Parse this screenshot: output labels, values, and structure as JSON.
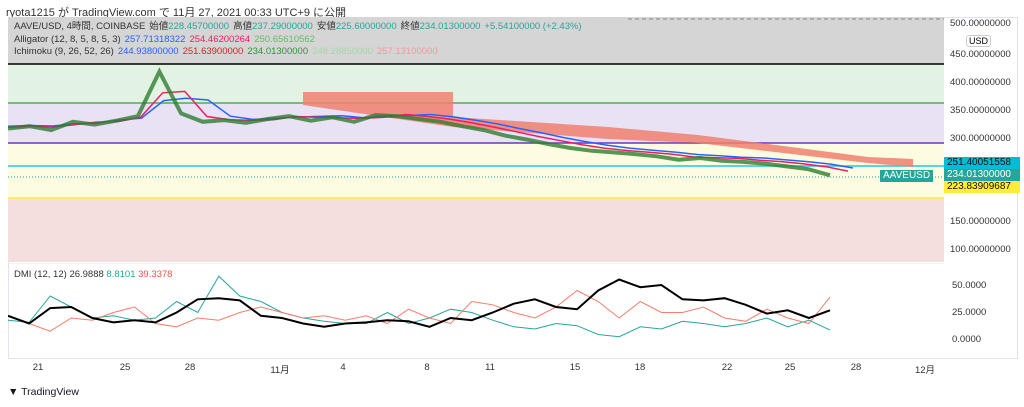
{
  "caption": "ryota1215 が TradingView.com で 11月 27, 2021 00:33 UTC+9 に公開",
  "legend": {
    "symbol": "AAVE/USD, 4時間, COINBASE",
    "open_label": "始値",
    "open": "228.45700000",
    "high_label": "高値",
    "high": "237.29000000",
    "low_label": "安値",
    "low": "225.60000000",
    "close_label": "終値",
    "close": "234.01300000",
    "change": "+5.54100000 (+2.43%)",
    "alligator_label": "Alligator (12, 8, 5, 8, 5, 3)",
    "alligator": [
      "257.71318322",
      "254.46200264",
      "250.65610562"
    ],
    "ichimoku_label": "Ichimoku (9, 26, 52, 26)",
    "ichimoku": [
      "244.93800000",
      "251.63900000",
      "234.01300000",
      "248.28850000",
      "257.13100000"
    ]
  },
  "price_axis": {
    "currency": "USD",
    "ticks": [
      "500.00000000",
      "450.00000000",
      "400.00000000",
      "350.00000000",
      "300.00000000",
      "150.00000000",
      "100.00000000"
    ],
    "tags": {
      "level": "251.40051558",
      "last": "234.01300000",
      "low_level": "223.83909687",
      "symbol": "AAVEUSD"
    }
  },
  "dmi": {
    "label": "DMI (12, 12)",
    "adx": "26.9888",
    "plus_di": "8.8101",
    "minus_di": "39.3378",
    "ticks": [
      "50.0000",
      "25.0000",
      "0.0000"
    ]
  },
  "time_axis": [
    "21",
    "25",
    "28",
    "11月",
    "4",
    "8",
    "11",
    "15",
    "18",
    "22",
    "25",
    "28",
    "12月"
  ],
  "brand": "TradingView",
  "colors": {
    "up": "#26a69a",
    "down": "#ef5350",
    "adx": "#000000",
    "plus": "#26a69a",
    "minus": "#f77c6a"
  },
  "chart_data": {
    "type": "line",
    "price_close": [
      318,
      322,
      315,
      330,
      325,
      332,
      340,
      420,
      345,
      330,
      333,
      328,
      335,
      340,
      332,
      338,
      330,
      342,
      340,
      335,
      330,
      322,
      315,
      305,
      298,
      290,
      283,
      278,
      275,
      272,
      268,
      262,
      265,
      260,
      258,
      255,
      250,
      245,
      234
    ],
    "dmi_adx": [
      22,
      15,
      29,
      30,
      20,
      16,
      18,
      16,
      25,
      37,
      38,
      36,
      22,
      20,
      15,
      12,
      15,
      16,
      18,
      17,
      12,
      20,
      18,
      25,
      33,
      37,
      30,
      28,
      45,
      55,
      48,
      50,
      37,
      36,
      38,
      32,
      24,
      27,
      20,
      27
    ],
    "dmi_plus": [
      18,
      16,
      40,
      30,
      20,
      22,
      18,
      20,
      35,
      25,
      58,
      40,
      35,
      25,
      20,
      17,
      15,
      15,
      25,
      15,
      20,
      28,
      25,
      18,
      12,
      10,
      15,
      13,
      5,
      3,
      12,
      10,
      17,
      15,
      12,
      15,
      20,
      12,
      18,
      9
    ],
    "dmi_minus": [
      22,
      15,
      8,
      20,
      18,
      25,
      30,
      15,
      12,
      20,
      18,
      25,
      30,
      25,
      20,
      22,
      18,
      22,
      15,
      28,
      20,
      15,
      35,
      32,
      25,
      20,
      30,
      45,
      35,
      20,
      35,
      25,
      25,
      30,
      20,
      17,
      28,
      20,
      15,
      39
    ]
  }
}
